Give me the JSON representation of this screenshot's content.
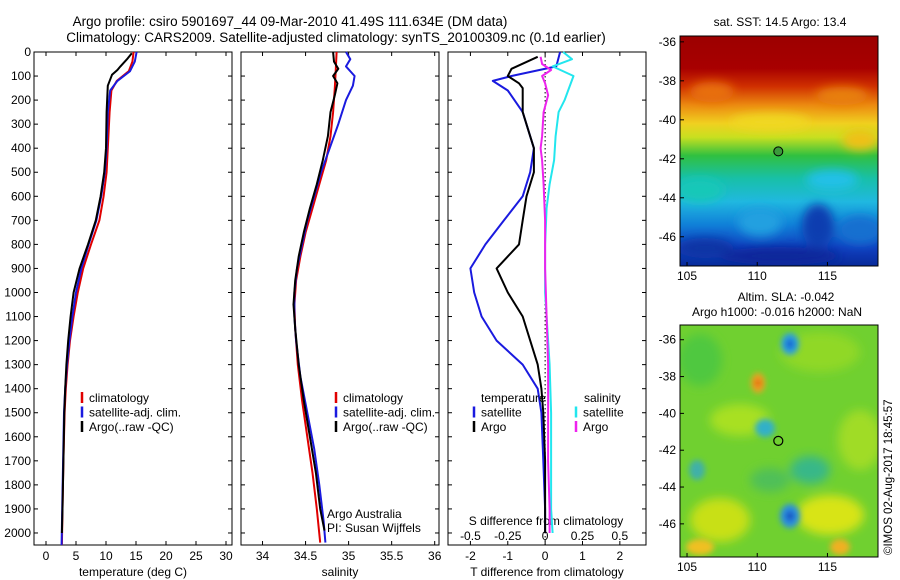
{
  "header": {
    "title_line1": "Argo profile: csiro 5901697_44 09-Mar-2010 41.49S 111.634E (DM data)",
    "title_line2": "Climatology: CARS2009. Satellite-adjusted climatology: synTS_20100309.nc (0.1d earlier)"
  },
  "credit": "©IMOS 02-Aug-2017 18:45:57",
  "colors": {
    "climatology": "#e00000",
    "satellite": "#1a1adf",
    "argo": "#000000",
    "salinity_satellite": "#22e6ee",
    "salinity_argo": "#ee22ee"
  },
  "chart_data": [
    {
      "id": "temperature",
      "type": "line",
      "xlabel": "temperature (deg C)",
      "ylabel": "",
      "xlim": [
        -2,
        31
      ],
      "ylim": [
        2050,
        0
      ],
      "x_ticks": [
        0,
        5,
        10,
        15,
        20,
        25,
        30
      ],
      "y_ticks": [
        0,
        100,
        200,
        300,
        400,
        500,
        600,
        700,
        800,
        900,
        1000,
        1100,
        1200,
        1300,
        1400,
        1500,
        1600,
        1700,
        1800,
        1900,
        2000
      ],
      "legend": {
        "placement": "middle-right",
        "entries": [
          "climatology",
          "satellite-adj. clim.",
          "Argo(..raw -QC)"
        ]
      },
      "series": [
        {
          "name": "climatology",
          "color_key": "climatology",
          "points": [
            [
              14.6,
              0
            ],
            [
              14.4,
              40
            ],
            [
              13.8,
              80
            ],
            [
              11.8,
              120
            ],
            [
              10.9,
              160
            ],
            [
              10.6,
              250
            ],
            [
              10.3,
              400
            ],
            [
              10.1,
              500
            ],
            [
              9.6,
              600
            ],
            [
              8.9,
              700
            ],
            [
              7.5,
              800
            ],
            [
              6.2,
              900
            ],
            [
              5.3,
              1000
            ],
            [
              4.6,
              1100
            ],
            [
              4.0,
              1200
            ],
            [
              3.6,
              1300
            ],
            [
              3.3,
              1400
            ],
            [
              3.1,
              1500
            ],
            [
              2.9,
              1700
            ],
            [
              2.75,
              1900
            ],
            [
              2.65,
              2050
            ]
          ]
        },
        {
          "name": "satellite-adj. clim.",
          "color_key": "satellite",
          "points": [
            [
              15.1,
              0
            ],
            [
              14.8,
              40
            ],
            [
              14.0,
              80
            ],
            [
              11.9,
              120
            ],
            [
              10.7,
              160
            ],
            [
              10.3,
              250
            ],
            [
              10.1,
              400
            ],
            [
              9.8,
              500
            ],
            [
              9.2,
              600
            ],
            [
              8.4,
              700
            ],
            [
              7.1,
              800
            ],
            [
              5.9,
              900
            ],
            [
              5.0,
              1000
            ],
            [
              4.4,
              1100
            ],
            [
              3.9,
              1200
            ],
            [
              3.5,
              1300
            ],
            [
              3.2,
              1400
            ],
            [
              3.0,
              1500
            ],
            [
              2.85,
              1700
            ],
            [
              2.7,
              1900
            ],
            [
              2.6,
              2050
            ]
          ]
        },
        {
          "name": "Argo(..raw -QC)",
          "color_key": "argo",
          "points": [
            [
              14.3,
              5
            ],
            [
              13.5,
              30
            ],
            [
              12.4,
              60
            ],
            [
              11.9,
              75
            ],
            [
              11.0,
              95
            ],
            [
              10.3,
              140
            ],
            [
              10.1,
              250
            ],
            [
              10.0,
              400
            ],
            [
              9.7,
              500
            ],
            [
              9.1,
              600
            ],
            [
              8.3,
              700
            ],
            [
              7.0,
              800
            ],
            [
              5.6,
              900
            ],
            [
              4.6,
              1000
            ],
            [
              4.1,
              1100
            ],
            [
              3.7,
              1200
            ],
            [
              3.4,
              1300
            ],
            [
              3.2,
              1400
            ],
            [
              3.05,
              1500
            ],
            [
              2.9,
              1700
            ],
            [
              2.75,
              1900
            ],
            [
              2.65,
              2000
            ]
          ]
        }
      ]
    },
    {
      "id": "salinity",
      "type": "line",
      "xlabel": "salinity",
      "ylabel": "",
      "xlim": [
        33.75,
        36.05
      ],
      "ylim": [
        2050,
        0
      ],
      "x_ticks": [
        34,
        34.5,
        35,
        35.5,
        36
      ],
      "x_tick_labels": [
        "34",
        "34.5",
        "35",
        "35.5",
        "36"
      ],
      "legend": {
        "placement": "middle-right",
        "entries": [
          "climatology",
          "satellite-adj. clim.",
          "Argo(..raw -QC)"
        ]
      },
      "annotation_lines": [
        "Argo Australia",
        "PI: Susan Wijffels"
      ],
      "series": [
        {
          "name": "climatology",
          "color_key": "climatology",
          "points": [
            [
              34.86,
              0
            ],
            [
              34.85,
              80
            ],
            [
              34.84,
              150
            ],
            [
              34.82,
              250
            ],
            [
              34.79,
              350
            ],
            [
              34.74,
              450
            ],
            [
              34.66,
              550
            ],
            [
              34.58,
              650
            ],
            [
              34.5,
              750
            ],
            [
              34.44,
              850
            ],
            [
              34.39,
              950
            ],
            [
              34.37,
              1050
            ],
            [
              34.38,
              1150
            ],
            [
              34.41,
              1300
            ],
            [
              34.46,
              1450
            ],
            [
              34.52,
              1600
            ],
            [
              34.58,
              1750
            ],
            [
              34.63,
              1900
            ],
            [
              34.67,
              2040
            ]
          ]
        },
        {
          "name": "satellite-adj. clim.",
          "color_key": "satellite",
          "points": [
            [
              34.97,
              0
            ],
            [
              35.02,
              30
            ],
            [
              34.97,
              60
            ],
            [
              35.07,
              100
            ],
            [
              35.05,
              140
            ],
            [
              34.97,
              200
            ],
            [
              34.88,
              300
            ],
            [
              34.78,
              400
            ],
            [
              34.68,
              500
            ],
            [
              34.6,
              600
            ],
            [
              34.52,
              700
            ],
            [
              34.46,
              800
            ],
            [
              34.4,
              900
            ],
            [
              34.37,
              1000
            ],
            [
              34.37,
              1100
            ],
            [
              34.39,
              1200
            ],
            [
              34.44,
              1350
            ],
            [
              34.52,
              1500
            ],
            [
              34.6,
              1650
            ],
            [
              34.66,
              1800
            ],
            [
              34.71,
              1950
            ],
            [
              34.73,
              2040
            ]
          ]
        },
        {
          "name": "Argo(..raw -QC)",
          "color_key": "argo",
          "points": [
            [
              34.82,
              0
            ],
            [
              34.83,
              40
            ],
            [
              34.88,
              70
            ],
            [
              34.82,
              100
            ],
            [
              34.87,
              130
            ],
            [
              34.84,
              180
            ],
            [
              34.79,
              250
            ],
            [
              34.76,
              350
            ],
            [
              34.7,
              450
            ],
            [
              34.63,
              550
            ],
            [
              34.55,
              650
            ],
            [
              34.48,
              750
            ],
            [
              34.42,
              850
            ],
            [
              34.38,
              950
            ],
            [
              34.36,
              1050
            ],
            [
              34.38,
              1150
            ],
            [
              34.42,
              1300
            ],
            [
              34.48,
              1450
            ],
            [
              34.55,
              1600
            ],
            [
              34.62,
              1750
            ],
            [
              34.67,
              1900
            ],
            [
              34.72,
              1990
            ]
          ]
        }
      ]
    },
    {
      "id": "difference",
      "type": "line",
      "xlabel": "T difference from climatology",
      "top_label": "S difference from climatology",
      "ylabel": "",
      "xlim": [
        -2.6,
        2.7
      ],
      "ylim": [
        2050,
        0
      ],
      "x_ticks": [
        -2,
        -1,
        0,
        1,
        2
      ],
      "s_ticks": [
        -0.5,
        -0.25,
        0,
        0.25,
        0.5
      ],
      "s_tick_labels": [
        "-0.5",
        "-0.25",
        "0",
        "0.25",
        "0.5"
      ],
      "legend": {
        "placement": "middle",
        "temperature_title": "temperature",
        "salinity_title": "salinity",
        "entries": [
          "satellite",
          "Argo",
          "satellite",
          "Argo"
        ]
      },
      "series": [
        {
          "name": "temperature satellite",
          "color_key": "satellite",
          "points": [
            [
              0.4,
              0
            ],
            [
              0.3,
              60
            ],
            [
              -0.9,
              100
            ],
            [
              -1.4,
              120
            ],
            [
              -1.0,
              160
            ],
            [
              -0.6,
              250
            ],
            [
              -0.3,
              400
            ],
            [
              -0.4,
              500
            ],
            [
              -0.6,
              600
            ],
            [
              -1.1,
              700
            ],
            [
              -1.6,
              800
            ],
            [
              -2.0,
              900
            ],
            [
              -1.9,
              1000
            ],
            [
              -1.7,
              1100
            ],
            [
              -1.3,
              1200
            ],
            [
              -0.6,
              1300
            ],
            [
              -0.2,
              1400
            ],
            [
              -0.1,
              1500
            ],
            [
              -0.05,
              1700
            ],
            [
              0,
              1900
            ],
            [
              0,
              2000
            ]
          ]
        },
        {
          "name": "temperature Argo",
          "color_key": "argo",
          "points": [
            [
              -0.2,
              20
            ],
            [
              -0.9,
              70
            ],
            [
              -1.0,
              100
            ],
            [
              -0.7,
              130
            ],
            [
              -0.6,
              150
            ],
            [
              -0.6,
              250
            ],
            [
              -0.3,
              400
            ],
            [
              -0.3,
              500
            ],
            [
              -0.5,
              600
            ],
            [
              -0.6,
              700
            ],
            [
              -0.7,
              800
            ],
            [
              -1.3,
              900
            ],
            [
              -1.0,
              1000
            ],
            [
              -0.6,
              1100
            ],
            [
              -0.4,
              1200
            ],
            [
              -0.2,
              1300
            ],
            [
              -0.1,
              1400
            ],
            [
              -0.05,
              1500
            ],
            [
              0,
              1700
            ],
            [
              0,
              2000
            ]
          ]
        },
        {
          "name": "salinity satellite",
          "color_key": "salinity_satellite",
          "points": [
            [
              0.12,
              0
            ],
            [
              0.18,
              30
            ],
            [
              0.05,
              60
            ],
            [
              0.19,
              100
            ],
            [
              0.16,
              150
            ],
            [
              0.13,
              200
            ],
            [
              0.09,
              250
            ],
            [
              0.07,
              350
            ],
            [
              0.06,
              450
            ],
            [
              0.03,
              550
            ],
            [
              0.01,
              650
            ],
            [
              0.0,
              800
            ],
            [
              0.0,
              900
            ],
            [
              0.0,
              1000
            ],
            [
              0.01,
              1100
            ],
            [
              0.02,
              1200
            ],
            [
              0.03,
              1300
            ],
            [
              0.04,
              1500
            ],
            [
              0.04,
              1700
            ],
            [
              0.04,
              1900
            ],
            [
              0.05,
              2000
            ]
          ]
        },
        {
          "name": "salinity Argo",
          "color_key": "salinity_argo",
          "points": [
            [
              -0.03,
              20
            ],
            [
              -0.02,
              50
            ],
            [
              0.04,
              75
            ],
            [
              -0.02,
              100
            ],
            [
              0.0,
              130
            ],
            [
              0.02,
              180
            ],
            [
              -0.01,
              250
            ],
            [
              -0.02,
              350
            ],
            [
              -0.03,
              400
            ],
            [
              -0.02,
              450
            ],
            [
              -0.01,
              550
            ],
            [
              0,
              700
            ],
            [
              0,
              900
            ],
            [
              0.01,
              1100
            ],
            [
              0.02,
              1300
            ],
            [
              0.02,
              1500
            ],
            [
              0.02,
              1700
            ],
            [
              0.03,
              1900
            ],
            [
              0.03,
              2000
            ]
          ]
        }
      ]
    }
  ],
  "maps": [
    {
      "id": "sst-map",
      "title_line1": "sat. SST: 14.5 Argo: 13.4",
      "title_line2": "",
      "lon_ticks": [
        105,
        110,
        115
      ],
      "lat_tick_labels": [
        "-36",
        "-38",
        "-40",
        "-42",
        "-44",
        "-46"
      ],
      "profile_location": {
        "lon": 111.634,
        "lat": -41.49
      }
    },
    {
      "id": "sla-map",
      "title_line1": "Altim. SLA: -0.042",
      "title_line2": "Argo h1000: -0.016 h2000: NaN",
      "lon_ticks": [
        105,
        110,
        115
      ],
      "lat_tick_labels": [
        "-36",
        "-38",
        "-40",
        "-42",
        "-44",
        "-46"
      ],
      "profile_location": {
        "lon": 111.634,
        "lat": -41.49
      }
    }
  ]
}
